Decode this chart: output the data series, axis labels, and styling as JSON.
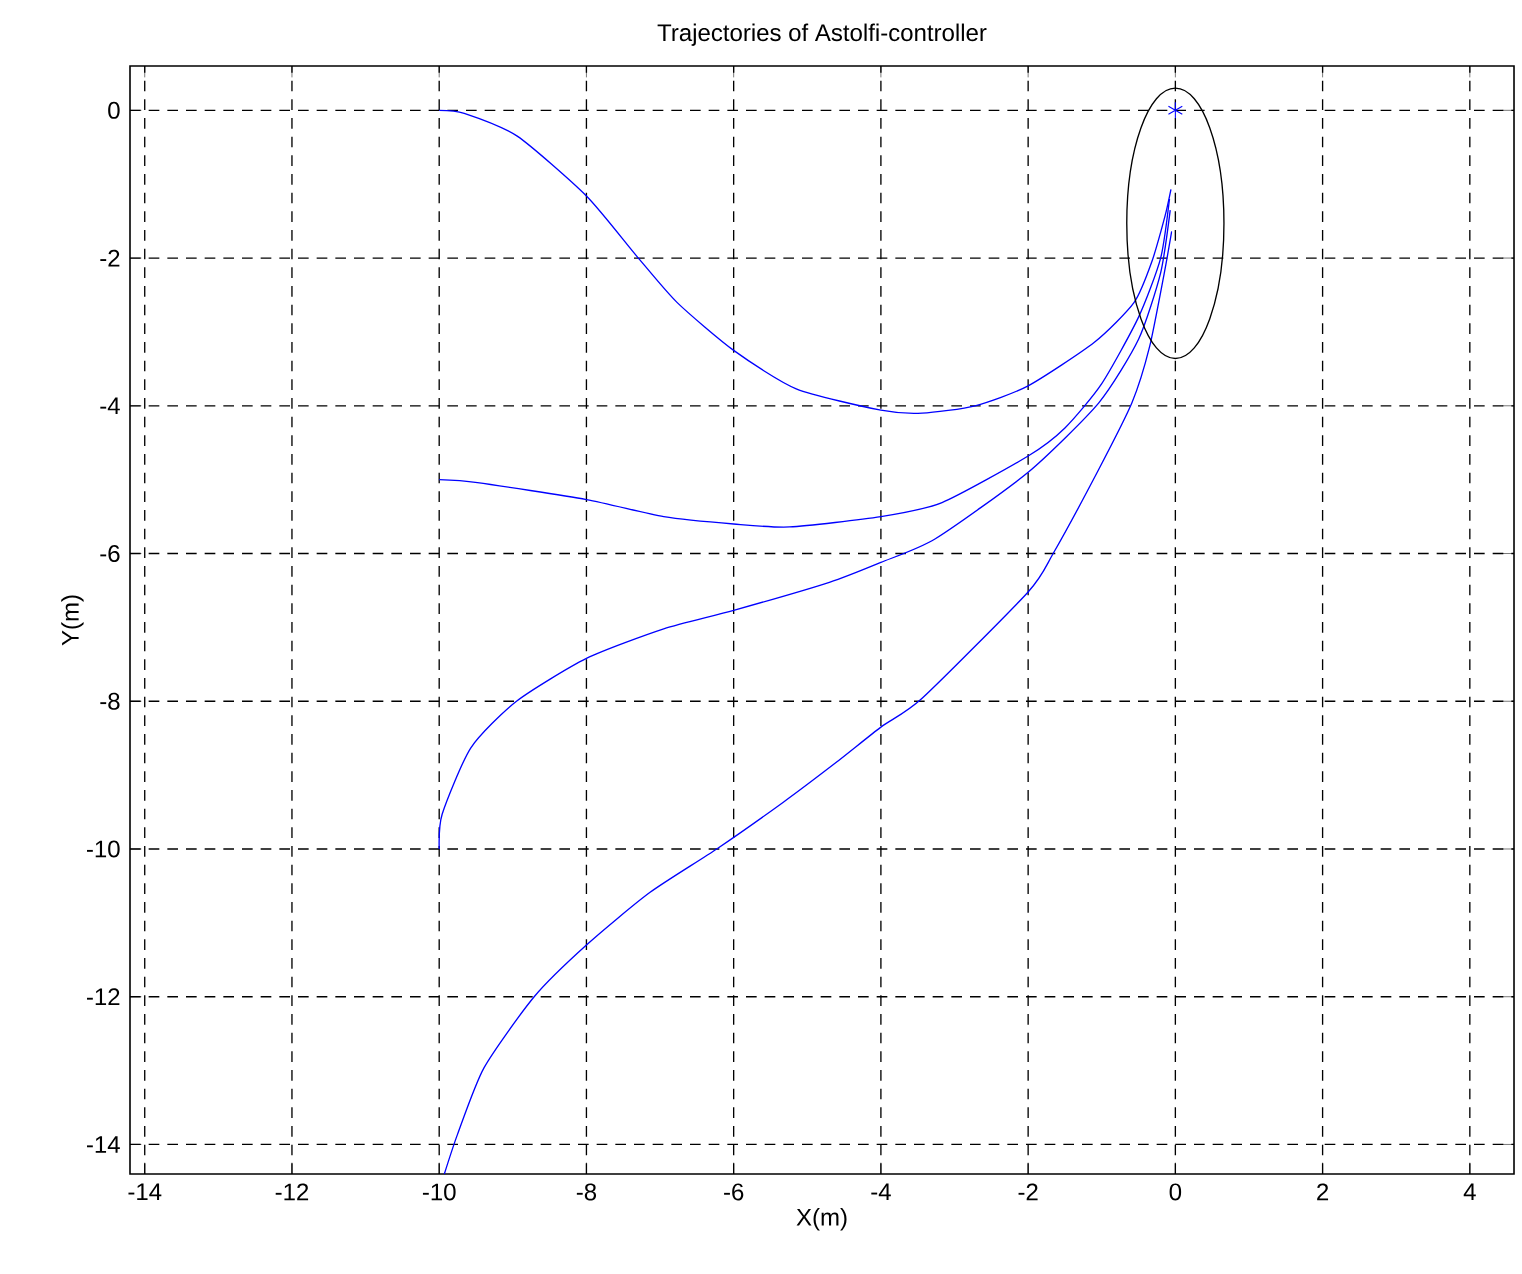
{
  "chart_data": {
    "type": "line",
    "title": "Trajectories of Astolfi-controller",
    "xlabel": "X(m)",
    "ylabel": "Y(m)",
    "xlim": [
      -14.2,
      4.6
    ],
    "ylim": [
      -14.4,
      0.6
    ],
    "xticks": [
      -14,
      -12,
      -10,
      -8,
      -6,
      -4,
      -2,
      0,
      2,
      4
    ],
    "yticks": [
      -14,
      -12,
      -10,
      -8,
      -6,
      -4,
      -2,
      0
    ],
    "grid": true,
    "marker": "none",
    "line_style": "solid",
    "series": [
      {
        "color": "#0000ff",
        "x": [
          -10,
          -9.66,
          -8.94,
          -8,
          -7.32,
          -6.77,
          -6,
          -5.15,
          -4,
          -3.44,
          -2.72,
          -2,
          -1.1,
          -0.56,
          -0.32,
          -0.14,
          -0.06
        ],
        "values": [
          0,
          -0.04,
          -0.35,
          -1.16,
          -1.97,
          -2.6,
          -3.25,
          -3.77,
          -4.06,
          -4.1,
          -4.0,
          -3.73,
          -3.14,
          -2.6,
          -2.05,
          -1.43,
          -1.07
        ]
      },
      {
        "color": "#0000ff",
        "x": [
          -10,
          -9.48,
          -8,
          -6.95,
          -6,
          -5.24,
          -4,
          -3.17,
          -2,
          -1.5,
          -1,
          -0.5,
          -0.2,
          -0.08
        ],
        "values": [
          -5.0,
          -5.04,
          -5.27,
          -5.5,
          -5.6,
          -5.64,
          -5.5,
          -5.31,
          -4.68,
          -4.3,
          -3.7,
          -2.8,
          -2.0,
          -1.2
        ]
      },
      {
        "color": "#0000ff",
        "x": [
          -10,
          -9.96,
          -9.57,
          -8.95,
          -8,
          -6.95,
          -6,
          -4.7,
          -4,
          -3.26,
          -2,
          -1.04,
          -0.5,
          -0.2,
          -0.07
        ],
        "values": [
          -10,
          -9.53,
          -8.63,
          -8,
          -7.42,
          -7.02,
          -6.77,
          -6.39,
          -6.12,
          -5.8,
          -4.9,
          -3.96,
          -3.1,
          -2.2,
          -1.35
        ]
      },
      {
        "color": "#0000ff",
        "x": [
          -9.93,
          -9.75,
          -9.39,
          -8.71,
          -8,
          -7.14,
          -6.23,
          -5.33,
          -4.61,
          -4,
          -3.44,
          -2,
          -1.66,
          -1.04,
          -0.59,
          -0.35,
          -0.15,
          -0.05
        ],
        "values": [
          -14.4,
          -13.86,
          -12.96,
          -12,
          -11.3,
          -10.59,
          -10,
          -9.37,
          -8.83,
          -8.35,
          -7.96,
          -6.52,
          -6,
          -4.86,
          -3.96,
          -3.2,
          -2.2,
          -1.64
        ]
      },
      {
        "type": "scatter",
        "marker": "cross",
        "color": "#0000ff",
        "x": [
          0
        ],
        "values": [
          0
        ]
      }
    ]
  }
}
